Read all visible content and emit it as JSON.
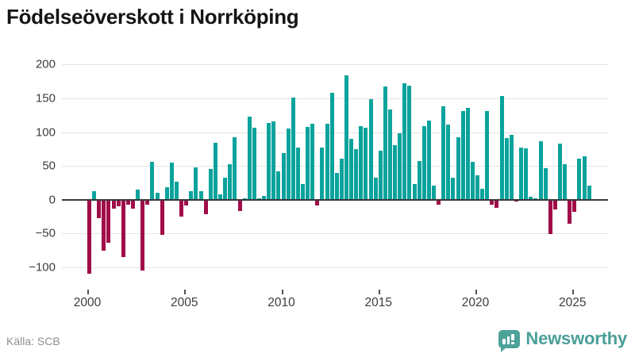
{
  "title": "Födelseöverskott i Norrköping",
  "source": "Källa: SCB",
  "brand": {
    "name": "Newsworthy"
  },
  "colors": {
    "positive_bar": "#0aa39c",
    "negative_bar": "#a00d49",
    "gridline": "#e3e3e3",
    "zero_line": "#3a3a3a",
    "axis_text": "#3d3d3d",
    "title_text": "#151515",
    "source_text": "#8e8e8e",
    "brand_teal": "#4a9e98"
  },
  "chart_data": {
    "type": "bar",
    "frequency": "quarterly",
    "start_year": 2000,
    "end_year": 2025,
    "title": "Födelseöverskott i Norrköping",
    "xlabel": "",
    "ylabel": "",
    "x_tick_labels": [
      "2000",
      "2005",
      "2010",
      "2015",
      "2020",
      "2025"
    ],
    "y_ticks": [
      200,
      150,
      100,
      50,
      0,
      -50,
      -100
    ],
    "y_tick_labels": [
      "200",
      "150",
      "100",
      "50",
      "0",
      "−50",
      "−100"
    ],
    "ylim": [
      -118,
      214
    ],
    "grid": true,
    "legend": false,
    "values": [
      -110,
      12,
      -27,
      -76,
      -64,
      -13,
      -10,
      -85,
      -8,
      -13,
      15,
      -105,
      -8,
      56,
      10,
      -52,
      19,
      55,
      27,
      -25,
      -9,
      13,
      48,
      13,
      -22,
      46,
      84,
      8,
      33,
      53,
      92,
      -17,
      2,
      123,
      107,
      2,
      5,
      114,
      116,
      42,
      69,
      105,
      151,
      77,
      23,
      108,
      112,
      -9,
      77,
      112,
      158,
      39,
      61,
      184,
      90,
      75,
      109,
      107,
      149,
      33,
      72,
      168,
      133,
      81,
      98,
      172,
      169,
      23,
      57,
      109,
      117,
      21,
      -8,
      138,
      111,
      33,
      92,
      131,
      136,
      56,
      36,
      16,
      131,
      -8,
      -12,
      154,
      91,
      96,
      -3,
      77,
      76,
      4,
      2,
      87,
      47,
      -51,
      -14,
      83,
      52,
      -36,
      -18,
      61,
      64,
      21
    ]
  }
}
